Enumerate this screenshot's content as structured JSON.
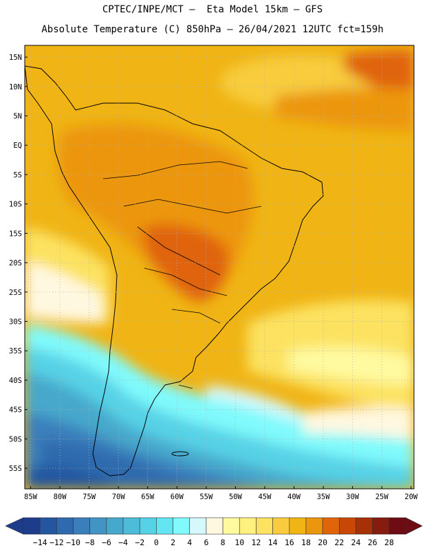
{
  "title": {
    "line1": "CPTEC/INPE/MCT –  Eta Model 15km – GFS",
    "line2": "Absolute Temperature (C) 850hPa – 26/04/2021 12UTC fct=159h"
  },
  "axes": {
    "lat_ticks": [
      "15N",
      "10N",
      "5N",
      "EQ",
      "5S",
      "10S",
      "15S",
      "20S",
      "25S",
      "30S",
      "35S",
      "40S",
      "45S",
      "50S",
      "55S"
    ],
    "lat_values": [
      15,
      10,
      5,
      0,
      -5,
      -10,
      -15,
      -20,
      -25,
      -30,
      -35,
      -40,
      -45,
      -50,
      -55
    ],
    "lon_ticks": [
      "85W",
      "80W",
      "75W",
      "70W",
      "65W",
      "60W",
      "55W",
      "50W",
      "45W",
      "40W",
      "35W",
      "30W",
      "25W",
      "20W"
    ],
    "lon_values": [
      -85,
      -80,
      -75,
      -70,
      -65,
      -60,
      -55,
      -50,
      -45,
      -40,
      -35,
      -30,
      -25,
      -20
    ],
    "lat_range": [
      -58.5,
      17
    ],
    "lon_range": [
      -86,
      -19.5
    ]
  },
  "colorbar": {
    "labels": [
      "-14",
      "-12",
      "-10",
      "-8",
      "-6",
      "-4",
      "-2",
      "0",
      "2",
      "4",
      "6",
      "8",
      "10",
      "12",
      "14",
      "16",
      "18",
      "20",
      "22",
      "24",
      "26",
      "28"
    ],
    "colors": [
      "#1e3c8c",
      "#2456a0",
      "#2f6aae",
      "#3a7fbc",
      "#4294c4",
      "#46a8cc",
      "#4cbcd8",
      "#56d2e6",
      "#64e6f2",
      "#80fafc",
      "#d4f8fc",
      "#fff8e0",
      "#fffaa0",
      "#fff080",
      "#fce260",
      "#f8cc3e",
      "#f0b414",
      "#ec9610",
      "#e0640a",
      "#c84606",
      "#a83006",
      "#861c10",
      "#6e0c14"
    ]
  },
  "field": {
    "ocean_warm": "#f0b414",
    "tropic_core": "#ec9610",
    "hot_core": "#e0640a",
    "cold_south": "#4cbcd8",
    "coldest": "#2f6aae"
  }
}
